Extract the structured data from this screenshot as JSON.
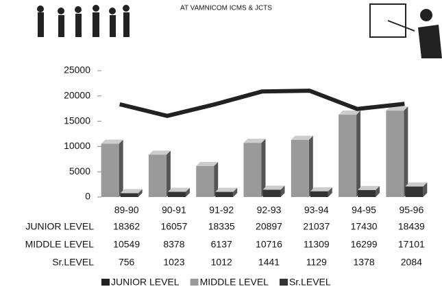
{
  "chart_data": {
    "type": "combo",
    "title": "AT VAMNICOM ICMS & JCTS",
    "categories": [
      "89-90",
      "90-91",
      "91-92",
      "92-93",
      "93-94",
      "94-95",
      "95-96"
    ],
    "series": [
      {
        "name": "JUNIOR LEVEL",
        "type": "line",
        "color": "#222222",
        "values": [
          18362,
          16057,
          18335,
          20897,
          21037,
          17430,
          18439
        ]
      },
      {
        "name": "MIDDLE LEVEL",
        "type": "bar",
        "color": "#9a9a9a",
        "values": [
          10549,
          8378,
          6137,
          10716,
          11309,
          16299,
          17101
        ]
      },
      {
        "name": "Sr.LEVEL",
        "type": "bar",
        "color": "#333333",
        "values": [
          756,
          1023,
          1012,
          1441,
          1129,
          1378,
          2084
        ]
      }
    ],
    "ylim": [
      0,
      25000
    ],
    "yticks": [
      0,
      5000,
      10000,
      15000,
      20000,
      25000
    ],
    "grid": false,
    "legend": "bottom"
  }
}
